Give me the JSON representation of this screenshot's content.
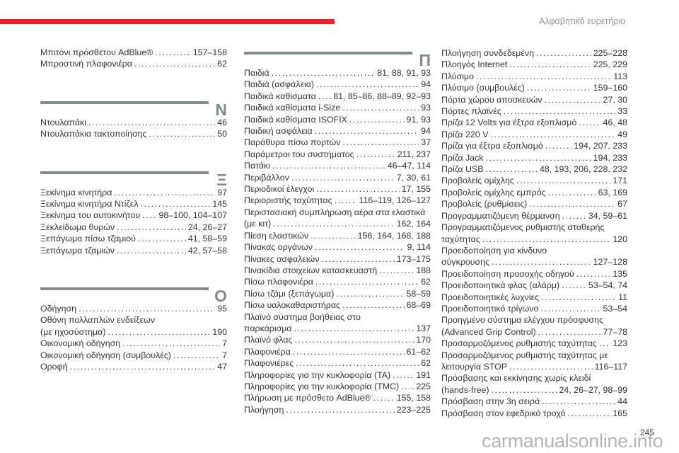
{
  "header": {
    "title": "Αλφαβητικό ευρετήριο"
  },
  "page": {
    "number": "245",
    "watermark": "carmanualsonline.info"
  },
  "colors": {
    "accent": "#f61c28",
    "divider": "#7d8c8c",
    "text": "#363638",
    "header_text": "#8e9a9a",
    "watermark": "#a3a7a7"
  },
  "columns": [
    {
      "blocks": [
        {
          "type": "entries",
          "rows": [
            {
              "label": "Μπιτόνι πρόσθετου AdBlue®",
              "pages": "157–158"
            },
            {
              "label": "Μπροστινή πλαφονιέρα",
              "pages": "62"
            }
          ]
        },
        {
          "type": "section",
          "letter": "Ν"
        },
        {
          "type": "entries",
          "rows": [
            {
              "label": "Ντουλαπάκι",
              "pages": "46"
            },
            {
              "label": "Ντουλαπάκια τακτοποίησης",
              "pages": "50"
            }
          ]
        },
        {
          "type": "section",
          "letter": "Ξ"
        },
        {
          "type": "entries",
          "rows": [
            {
              "label": "Ξεκίνημα κινητήρα",
              "pages": "97"
            },
            {
              "label": "Ξεκίνημα κινητήρα Ντίζελ",
              "pages": "145"
            },
            {
              "label": "Ξεκίνημα του αυτοκινήτου",
              "pages": "98–100, 104–107"
            },
            {
              "label": "Ξεκλείδωμα θυρών",
              "pages": "24, 26–27"
            },
            {
              "label": "Ξεπάγωμα πίσω τζαμιού",
              "pages": "41, 58–59"
            },
            {
              "label": "Ξεπάγωμα τζαμιών",
              "pages": "42, 57–58"
            }
          ]
        },
        {
          "type": "section",
          "letter": "Ο"
        },
        {
          "type": "entries",
          "rows": [
            {
              "label": "Οδήγηση",
              "pages": "95"
            },
            {
              "label": "Οθόνη πολλαπλών ενδείξεων",
              "pages": ""
            },
            {
              "label": "(με ηχοσύστημα)",
              "pages": "190"
            },
            {
              "label": "Οικονομική οδήγηση",
              "pages": "7"
            },
            {
              "label": "Οικονομική οδήγηση (συμβουλές)",
              "pages": "7"
            },
            {
              "label": "Οροφή",
              "pages": "47"
            }
          ]
        }
      ]
    },
    {
      "blocks": [
        {
          "type": "section",
          "letter": "Π"
        },
        {
          "type": "entries",
          "rows": [
            {
              "label": "Παιδιά",
              "pages": "81, 88, 91, 93"
            },
            {
              "label": "Παιδιά (ασφάλεια)",
              "pages": "94"
            },
            {
              "label": "Παιδικά καθίσματα",
              "pages": "81, 85–86, 88–89, 92–93"
            },
            {
              "label": "Παιδικά καθίσματα i-Size",
              "pages": "93"
            },
            {
              "label": "Παιδικά καθίσματα ISOFIX",
              "pages": "91, 93"
            },
            {
              "label": "Παιδική ασφάλεια",
              "pages": "94"
            },
            {
              "label": "Παράθυρα πίσω πορτών",
              "pages": "37"
            },
            {
              "label": "Παράμετροι του συστήματος",
              "pages": "211, 237"
            },
            {
              "label": "Πατάκι",
              "pages": "46–47, 114"
            },
            {
              "label": "Περιβάλλον",
              "pages": "7, 30, 61"
            },
            {
              "label": "Περιοδικοί έλεγχοι",
              "pages": "17, 155"
            },
            {
              "label": "Περιοριστής ταχύτητας",
              "pages": "116–119, 126–127"
            },
            {
              "label": "Περιστασιακή συμπλήρωση αέρα στα ελαστικά",
              "pages": ""
            },
            {
              "label": "(με κιτ)",
              "pages": "162, 164"
            },
            {
              "label": "Πίεση ελαστικών",
              "pages": "156, 164, 168, 188"
            },
            {
              "label": "Πίνακας οργάνων",
              "pages": "9, 114"
            },
            {
              "label": "Πίνακες ασφαλειών",
              "pages": "173–175"
            },
            {
              "label": "Πινακίδια στοιχείων κατασκευαστή",
              "pages": "188"
            },
            {
              "label": "Πίσω πλαφονιέρα",
              "pages": "62"
            },
            {
              "label": "Πίσω τζάμι (ξεπάγωμα)",
              "pages": "58–59"
            },
            {
              "label": "Πίσω υαλοκαθαριστήρας",
              "pages": "68–69"
            },
            {
              "label": "Πλαϊνό σύστημα βοήθειας στο",
              "pages": ""
            },
            {
              "label": "παρκάρισμα",
              "pages": "137"
            },
            {
              "label": "Πλαϊνό φλας",
              "pages": "170"
            },
            {
              "label": "Πλαφονιέρα",
              "pages": "61–62"
            },
            {
              "label": "Πλαφονιέρες",
              "pages": "62"
            },
            {
              "label": "Πληροφορίες για την κυκλοφορία (ΤΑ)",
              "pages": "191"
            },
            {
              "label": "Πληροφορίες για την κυκλοφορία (TMC)",
              "pages": "225"
            },
            {
              "label": "Πλήρωση με πρόσθετο AdBlue®",
              "pages": "155, 158"
            },
            {
              "label": "Πλοήγηση",
              "pages": "223–225"
            }
          ]
        }
      ]
    },
    {
      "blocks": [
        {
          "type": "entries",
          "rows": [
            {
              "label": "Πλοήγηση συνδεδεμένη",
              "pages": "225–228"
            },
            {
              "label": "Πλοηγός Internet",
              "pages": "225, 229"
            },
            {
              "label": "Πλύσιμο",
              "pages": "113"
            },
            {
              "label": "Πλύσιμο (συμβουλές)",
              "pages": "159–160"
            },
            {
              "label": "Πόρτα χώρου αποσκευών",
              "pages": "27, 30"
            },
            {
              "label": "Πόρτες πλαϊνές",
              "pages": "33"
            },
            {
              "label": "Πρίζα 12 Volts για έξτρα εξοπλισμό",
              "pages": "46, 48"
            },
            {
              "label": "Πρίζα 220 V",
              "pages": "49"
            },
            {
              "label": "Πρίζα για έξτρα εξοπλισμό",
              "pages": "194, 207, 233"
            },
            {
              "label": "Πρίζα Jack",
              "pages": "194, 233"
            },
            {
              "label": "Πρίζα USB",
              "pages": "48, 193, 206, 228, 232"
            },
            {
              "label": "Προβολείς ομίχλης",
              "pages": "171"
            },
            {
              "label": "Προβολείς ομίχλης εμπρός",
              "pages": "63, 169"
            },
            {
              "label": "Προβολείς (ρυθμίσεις)",
              "pages": "67"
            },
            {
              "label": "Προγραμματιζόμενη θέρμανση",
              "pages": "34, 59–61"
            },
            {
              "label": "Προγραμματιζόμενος ρυθμιστής σταθερής",
              "pages": ""
            },
            {
              "label": "ταχύτητας",
              "pages": "120"
            },
            {
              "label": "Προειδοποίηση για κίνδυνο",
              "pages": ""
            },
            {
              "label": "σύγκρουσης",
              "pages": "127–128"
            },
            {
              "label": "Προειδοποίηση προσοχής οδηγού",
              "pages": "135"
            },
            {
              "label": "Προειδοποιητικά φλας (αλάρμ)",
              "pages": "53–54, 74"
            },
            {
              "label": "Προειδοποιητικές λυχνίες",
              "pages": "11"
            },
            {
              "label": "Προειδοποιητικό τρίγωνο",
              "pages": "53–54"
            },
            {
              "label": "Προηγμένο σύστημα ελέγχου πρόσφυσης",
              "pages": ""
            },
            {
              "label": "(Advanced Grip Control)",
              "pages": "77–78"
            },
            {
              "label": "Προσαρμοζόμενος ρυθμιστής ταχύτητας",
              "pages": "123"
            },
            {
              "label": "Προσαρμοζόμενος ρυθμιστής ταχύτητας με",
              "pages": ""
            },
            {
              "label": "λειτουργία STOP",
              "pages": "116–117"
            },
            {
              "label": "Πρόσβασης και εκκίνησης χωρίς κλειδί",
              "pages": ""
            },
            {
              "label": "(hands-free)",
              "pages": "24, 26–27, 98–99"
            },
            {
              "label": "Πρόσβαση στην 3η σειρά",
              "pages": "44"
            },
            {
              "label": "Πρόσβαση στον εφεδρικό τροχό",
              "pages": "165"
            }
          ]
        }
      ]
    }
  ]
}
